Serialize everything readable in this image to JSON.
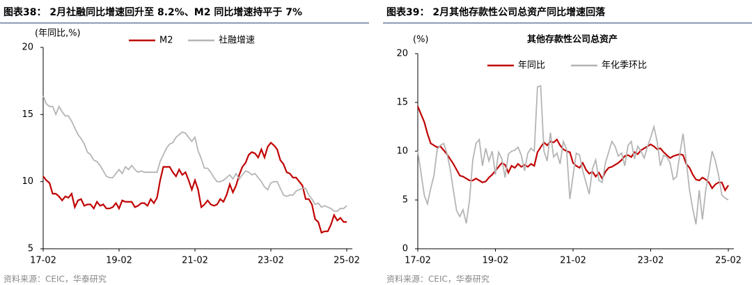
{
  "chart_data": [
    {
      "type": "line",
      "title": "图表38：  2月社融同比增速回升至 8.2%、M2 同比增速持平于 7%",
      "y_label": "(年同比,%)",
      "source": "资料来源：CEIC，华泰研究",
      "categories": [
        "17-02",
        null,
        null,
        null,
        null,
        null,
        null,
        null,
        null,
        null,
        null,
        null,
        null,
        null,
        null,
        null,
        null,
        null,
        null,
        null,
        null,
        null,
        null,
        null,
        "19-02",
        null,
        null,
        null,
        null,
        null,
        null,
        null,
        null,
        null,
        null,
        null,
        null,
        null,
        null,
        null,
        null,
        null,
        null,
        null,
        null,
        null,
        null,
        null,
        "21-02",
        null,
        null,
        null,
        null,
        null,
        null,
        null,
        null,
        null,
        null,
        null,
        null,
        null,
        null,
        null,
        null,
        null,
        null,
        null,
        null,
        null,
        null,
        null,
        "23-02",
        null,
        null,
        null,
        null,
        null,
        null,
        null,
        null,
        null,
        null,
        null,
        null,
        null,
        null,
        null,
        null,
        null,
        null,
        null,
        null,
        null,
        null,
        null,
        "25-02"
      ],
      "ylim": [
        5,
        20
      ],
      "yticks": [
        5,
        10,
        15,
        20
      ],
      "series": [
        {
          "name": "M2",
          "color": "#c00000",
          "values": [
            10.4,
            10.1,
            9.9,
            9.1,
            9.1,
            8.9,
            8.6,
            8.9,
            8.8,
            9.1,
            8.1,
            8.6,
            8.7,
            8.2,
            8.3,
            8.3,
            8.0,
            8.5,
            8.2,
            8.3,
            8.0,
            8.0,
            8.1,
            8.4,
            8.0,
            8.6,
            8.5,
            8.5,
            8.5,
            8.1,
            8.2,
            8.4,
            8.4,
            8.2,
            8.7,
            8.4,
            8.8,
            10.1,
            11.1,
            11.1,
            11.1,
            10.7,
            10.4,
            10.9,
            10.5,
            10.7,
            10.1,
            9.4,
            10.1,
            9.4,
            8.1,
            8.3,
            8.6,
            8.3,
            8.2,
            8.3,
            8.7,
            8.5,
            9.0,
            9.8,
            9.2,
            9.7,
            10.5,
            11.1,
            11.4,
            12.0,
            12.2,
            12.1,
            11.8,
            12.4,
            11.8,
            12.6,
            12.9,
            12.7,
            12.4,
            11.6,
            11.3,
            10.7,
            10.6,
            10.3,
            10.3,
            10.0,
            9.7,
            8.7,
            8.7,
            8.3,
            7.2,
            7.0,
            6.2,
            6.3,
            6.3,
            6.8,
            7.5,
            7.1,
            7.3,
            7.0,
            7.0
          ]
        },
        {
          "name": "社融增速",
          "color": "#b4b4b4",
          "values": [
            16.4,
            15.8,
            15.6,
            15.6,
            15.0,
            15.6,
            15.2,
            14.9,
            14.9,
            14.5,
            14.0,
            13.5,
            13.2,
            12.8,
            12.2,
            12.0,
            11.6,
            11.5,
            11.2,
            10.8,
            10.4,
            10.3,
            10.3,
            10.6,
            10.9,
            10.6,
            11.1,
            10.9,
            11.2,
            10.9,
            10.7,
            10.8,
            10.7,
            10.7,
            10.7,
            10.7,
            10.7,
            11.5,
            12.0,
            12.5,
            12.8,
            12.9,
            13.3,
            13.5,
            13.7,
            13.6,
            13.3,
            13.0,
            13.3,
            12.3,
            11.7,
            11.0,
            11.0,
            10.7,
            10.3,
            10.0,
            10.0,
            10.1,
            10.3,
            10.5,
            10.2,
            10.6,
            10.2,
            10.5,
            10.8,
            10.7,
            10.5,
            10.6,
            10.3,
            10.0,
            9.6,
            9.4,
            9.9,
            10.0,
            10.0,
            9.5,
            9.0,
            8.9,
            9.0,
            9.0,
            9.3,
            9.4,
            9.5,
            9.5,
            9.0,
            8.7,
            8.3,
            8.4,
            8.1,
            8.2,
            8.1,
            8.0,
            7.8,
            7.8,
            8.0,
            8.0,
            8.2
          ]
        }
      ]
    },
    {
      "type": "line",
      "title": "图表39：  2月其他存款性公司总资产同比增速回落",
      "subtitle": "其他存款性公司总资产",
      "y_label": "(%)",
      "source": "资料来源：CEIC，华泰研究",
      "categories": [
        "17-02",
        null,
        null,
        null,
        null,
        null,
        null,
        null,
        null,
        null,
        null,
        null,
        null,
        null,
        null,
        null,
        null,
        null,
        null,
        null,
        null,
        null,
        null,
        null,
        "19-02",
        null,
        null,
        null,
        null,
        null,
        null,
        null,
        null,
        null,
        null,
        null,
        null,
        null,
        null,
        null,
        null,
        null,
        null,
        null,
        null,
        null,
        null,
        null,
        "21-02",
        null,
        null,
        null,
        null,
        null,
        null,
        null,
        null,
        null,
        null,
        null,
        null,
        null,
        null,
        null,
        null,
        null,
        null,
        null,
        null,
        null,
        null,
        null,
        "23-02",
        null,
        null,
        null,
        null,
        null,
        null,
        null,
        null,
        null,
        null,
        null,
        null,
        null,
        null,
        null,
        null,
        null,
        null,
        null,
        null,
        null,
        null,
        null,
        "25-02"
      ],
      "ylim": [
        0,
        20
      ],
      "yticks": [
        0,
        5,
        10,
        15,
        20
      ],
      "series": [
        {
          "name": "年同比",
          "color": "#c00000",
          "values": [
            14.6,
            13.8,
            13.0,
            11.8,
            10.8,
            10.6,
            10.4,
            10.5,
            10.1,
            9.7,
            9.2,
            8.7,
            8.1,
            7.5,
            7.4,
            7.2,
            7.0,
            7.0,
            7.2,
            7.0,
            6.8,
            6.9,
            7.3,
            7.6,
            8.0,
            8.4,
            8.8,
            8.6,
            7.8,
            8.5,
            8.3,
            8.7,
            8.4,
            8.6,
            8.4,
            8.7,
            8.5,
            9.9,
            10.4,
            10.9,
            10.6,
            11.0,
            10.9,
            11.2,
            10.6,
            10.2,
            10.0,
            9.9,
            8.8,
            8.5,
            8.3,
            8.8,
            8.1,
            7.7,
            7.9,
            7.4,
            7.8,
            7.2,
            7.9,
            8.3,
            8.4,
            8.6,
            8.8,
            9.1,
            9.5,
            9.6,
            9.4,
            9.9,
            9.7,
            10.1,
            10.3,
            10.5,
            10.7,
            10.5,
            10.2,
            10.3,
            9.9,
            9.6,
            9.3,
            9.5,
            9.6,
            9.7,
            9.6,
            8.7,
            8.3,
            7.6,
            7.1,
            7.0,
            7.3,
            7.1,
            6.8,
            6.2,
            6.6,
            6.8,
            6.8,
            6.0,
            6.5
          ]
        },
        {
          "name": "年化季环比",
          "color": "#b4b4b4",
          "values": [
            10.0,
            7.8,
            5.5,
            4.6,
            6.2,
            7.5,
            10.2,
            10.6,
            10.8,
            9.8,
            8.2,
            6.0,
            3.9,
            3.3,
            4.0,
            2.6,
            5.0,
            9.1,
            10.8,
            11.2,
            8.5,
            10.3,
            9.0,
            10.0,
            7.6,
            9.9,
            9.2,
            7.3,
            9.7,
            10.0,
            10.1,
            10.4,
            9.6,
            8.0,
            9.8,
            10.3,
            10.0,
            16.6,
            16.7,
            10.0,
            9.0,
            11.9,
            9.4,
            9.8,
            8.7,
            11.0,
            10.2,
            5.1,
            7.5,
            9.8,
            9.6,
            8.0,
            6.8,
            5.6,
            8.2,
            9.1,
            7.0,
            6.8,
            8.8,
            9.9,
            11.0,
            10.5,
            9.5,
            9.8,
            8.5,
            10.6,
            11.0,
            9.2,
            10.5,
            10.0,
            9.3,
            10.5,
            11.4,
            12.5,
            11.0,
            8.5,
            9.6,
            9.4,
            8.8,
            7.1,
            7.4,
            9.7,
            11.8,
            9.0,
            6.0,
            4.1,
            2.5,
            6.0,
            3.0,
            6.0,
            7.8,
            10.0,
            9.0,
            7.5,
            5.5,
            5.2,
            5.0
          ]
        }
      ]
    }
  ]
}
